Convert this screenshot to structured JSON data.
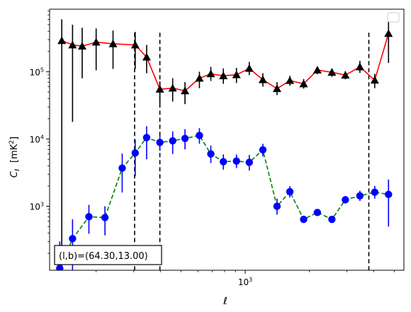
{
  "chart_data": {
    "type": "scatter",
    "xlabel": "ℓ",
    "ylabel_main": "C",
    "ylabel_sub": "ℓ",
    "ylabel_unit_pre": "[mK",
    "ylabel_unit_sup": "2",
    "ylabel_unit_post": "]",
    "xscale": "log",
    "yscale": "log",
    "xlim": [
      121,
      5550
    ],
    "ylim": [
      112,
      850000
    ],
    "x_tick_labels": [
      {
        "base": "10",
        "exp": "3",
        "value": 1000
      }
    ],
    "y_tick_labels": [
      {
        "base": "10",
        "exp": "3",
        "value": 1000
      },
      {
        "base": "10",
        "exp": "4",
        "value": 10000
      },
      {
        "base": "10",
        "exp": "5",
        "value": 100000
      }
    ],
    "annotation": "(l,b)=(64.30,13.00)",
    "legend": {
      "placement": "top-right",
      "entries": []
    },
    "vlines_x": [
      303,
      398,
      3800
    ],
    "series": [
      {
        "marker": "triangle",
        "line_color": "#ff0000",
        "line_style": "solid",
        "marker_color": "#000000",
        "errorbar_color": "#000000",
        "points": [
          {
            "x": 138,
            "y": 290000,
            "lo": 120,
            "hi": 600000
          },
          {
            "x": 155,
            "y": 250000,
            "lo": 18000,
            "hi": 500000
          },
          {
            "x": 172,
            "y": 240000,
            "lo": 80000,
            "hi": 450000
          },
          {
            "x": 200,
            "y": 275000,
            "lo": 105000,
            "hi": 440000
          },
          {
            "x": 240,
            "y": 260000,
            "lo": 110000,
            "hi": 410000
          },
          {
            "x": 305,
            "y": 250000,
            "lo": 110000,
            "hi": 390000
          },
          {
            "x": 345,
            "y": 165000,
            "lo": 95000,
            "hi": 250000
          },
          {
            "x": 398,
            "y": 55000,
            "lo": 33000,
            "hi": 72000
          },
          {
            "x": 457,
            "y": 57000,
            "lo": 36000,
            "hi": 80000
          },
          {
            "x": 522,
            "y": 52000,
            "lo": 33000,
            "hi": 70000
          },
          {
            "x": 610,
            "y": 80000,
            "lo": 57000,
            "hi": 100000
          },
          {
            "x": 690,
            "y": 93000,
            "lo": 73000,
            "hi": 118000
          },
          {
            "x": 790,
            "y": 87000,
            "lo": 66000,
            "hi": 112000
          },
          {
            "x": 910,
            "y": 90000,
            "lo": 68000,
            "hi": 114000
          },
          {
            "x": 1045,
            "y": 112000,
            "lo": 89000,
            "hi": 140000
          },
          {
            "x": 1210,
            "y": 76000,
            "lo": 60000,
            "hi": 95000
          },
          {
            "x": 1410,
            "y": 56000,
            "lo": 45000,
            "hi": 70000
          },
          {
            "x": 1620,
            "y": 74000,
            "lo": 62000,
            "hi": 87000
          },
          {
            "x": 1880,
            "y": 66000,
            "lo": 56000,
            "hi": 78000
          },
          {
            "x": 2180,
            "y": 106000,
            "lo": 92000,
            "hi": 118000
          },
          {
            "x": 2550,
            "y": 98000,
            "lo": 84000,
            "hi": 112000
          },
          {
            "x": 2950,
            "y": 89000,
            "lo": 77000,
            "hi": 102000
          },
          {
            "x": 3450,
            "y": 118000,
            "lo": 96000,
            "hi": 145000
          },
          {
            "x": 4050,
            "y": 75000,
            "lo": 57000,
            "hi": 93000
          },
          {
            "x": 4700,
            "y": 370000,
            "lo": 135000,
            "hi": 610000
          }
        ]
      },
      {
        "marker": "circle",
        "line_color": "#008000",
        "line_style": "dashed",
        "marker_color": "#0000ff",
        "errorbar_color": "#0000ff",
        "points": [
          {
            "x": 135,
            "y": 120,
            "lo": 112,
            "hi": 300
          },
          {
            "x": 155,
            "y": 330,
            "lo": 112,
            "hi": 640
          },
          {
            "x": 185,
            "y": 700,
            "lo": 390,
            "hi": 1050
          },
          {
            "x": 220,
            "y": 680,
            "lo": 370,
            "hi": 1000
          },
          {
            "x": 265,
            "y": 3700,
            "lo": 1600,
            "hi": 6100
          },
          {
            "x": 305,
            "y": 6200,
            "lo": 2800,
            "hi": 9800
          },
          {
            "x": 345,
            "y": 10500,
            "lo": 5000,
            "hi": 15500
          },
          {
            "x": 398,
            "y": 8900,
            "lo": 6700,
            "hi": 11500
          },
          {
            "x": 457,
            "y": 9400,
            "lo": 6000,
            "hi": 13000
          },
          {
            "x": 522,
            "y": 10200,
            "lo": 7000,
            "hi": 14000
          },
          {
            "x": 610,
            "y": 11300,
            "lo": 8500,
            "hi": 14500
          },
          {
            "x": 690,
            "y": 6000,
            "lo": 4400,
            "hi": 8000
          },
          {
            "x": 790,
            "y": 4600,
            "lo": 3500,
            "hi": 5900
          },
          {
            "x": 910,
            "y": 4700,
            "lo": 3700,
            "hi": 5900
          },
          {
            "x": 1045,
            "y": 4500,
            "lo": 3400,
            "hi": 5800
          },
          {
            "x": 1210,
            "y": 6900,
            "lo": 5500,
            "hi": 8500
          },
          {
            "x": 1410,
            "y": 1000,
            "lo": 750,
            "hi": 1300
          },
          {
            "x": 1620,
            "y": 1650,
            "lo": 1350,
            "hi": 2000
          },
          {
            "x": 1880,
            "y": 640,
            "lo": 570,
            "hi": 720
          },
          {
            "x": 2180,
            "y": 810,
            "lo": 720,
            "hi": 900
          },
          {
            "x": 2550,
            "y": 640,
            "lo": 570,
            "hi": 720
          },
          {
            "x": 2950,
            "y": 1250,
            "lo": 1100,
            "hi": 1420
          },
          {
            "x": 3450,
            "y": 1430,
            "lo": 1200,
            "hi": 1700
          },
          {
            "x": 4050,
            "y": 1620,
            "lo": 1300,
            "hi": 2000
          },
          {
            "x": 4700,
            "y": 1500,
            "lo": 500,
            "hi": 2500
          }
        ]
      }
    ]
  }
}
